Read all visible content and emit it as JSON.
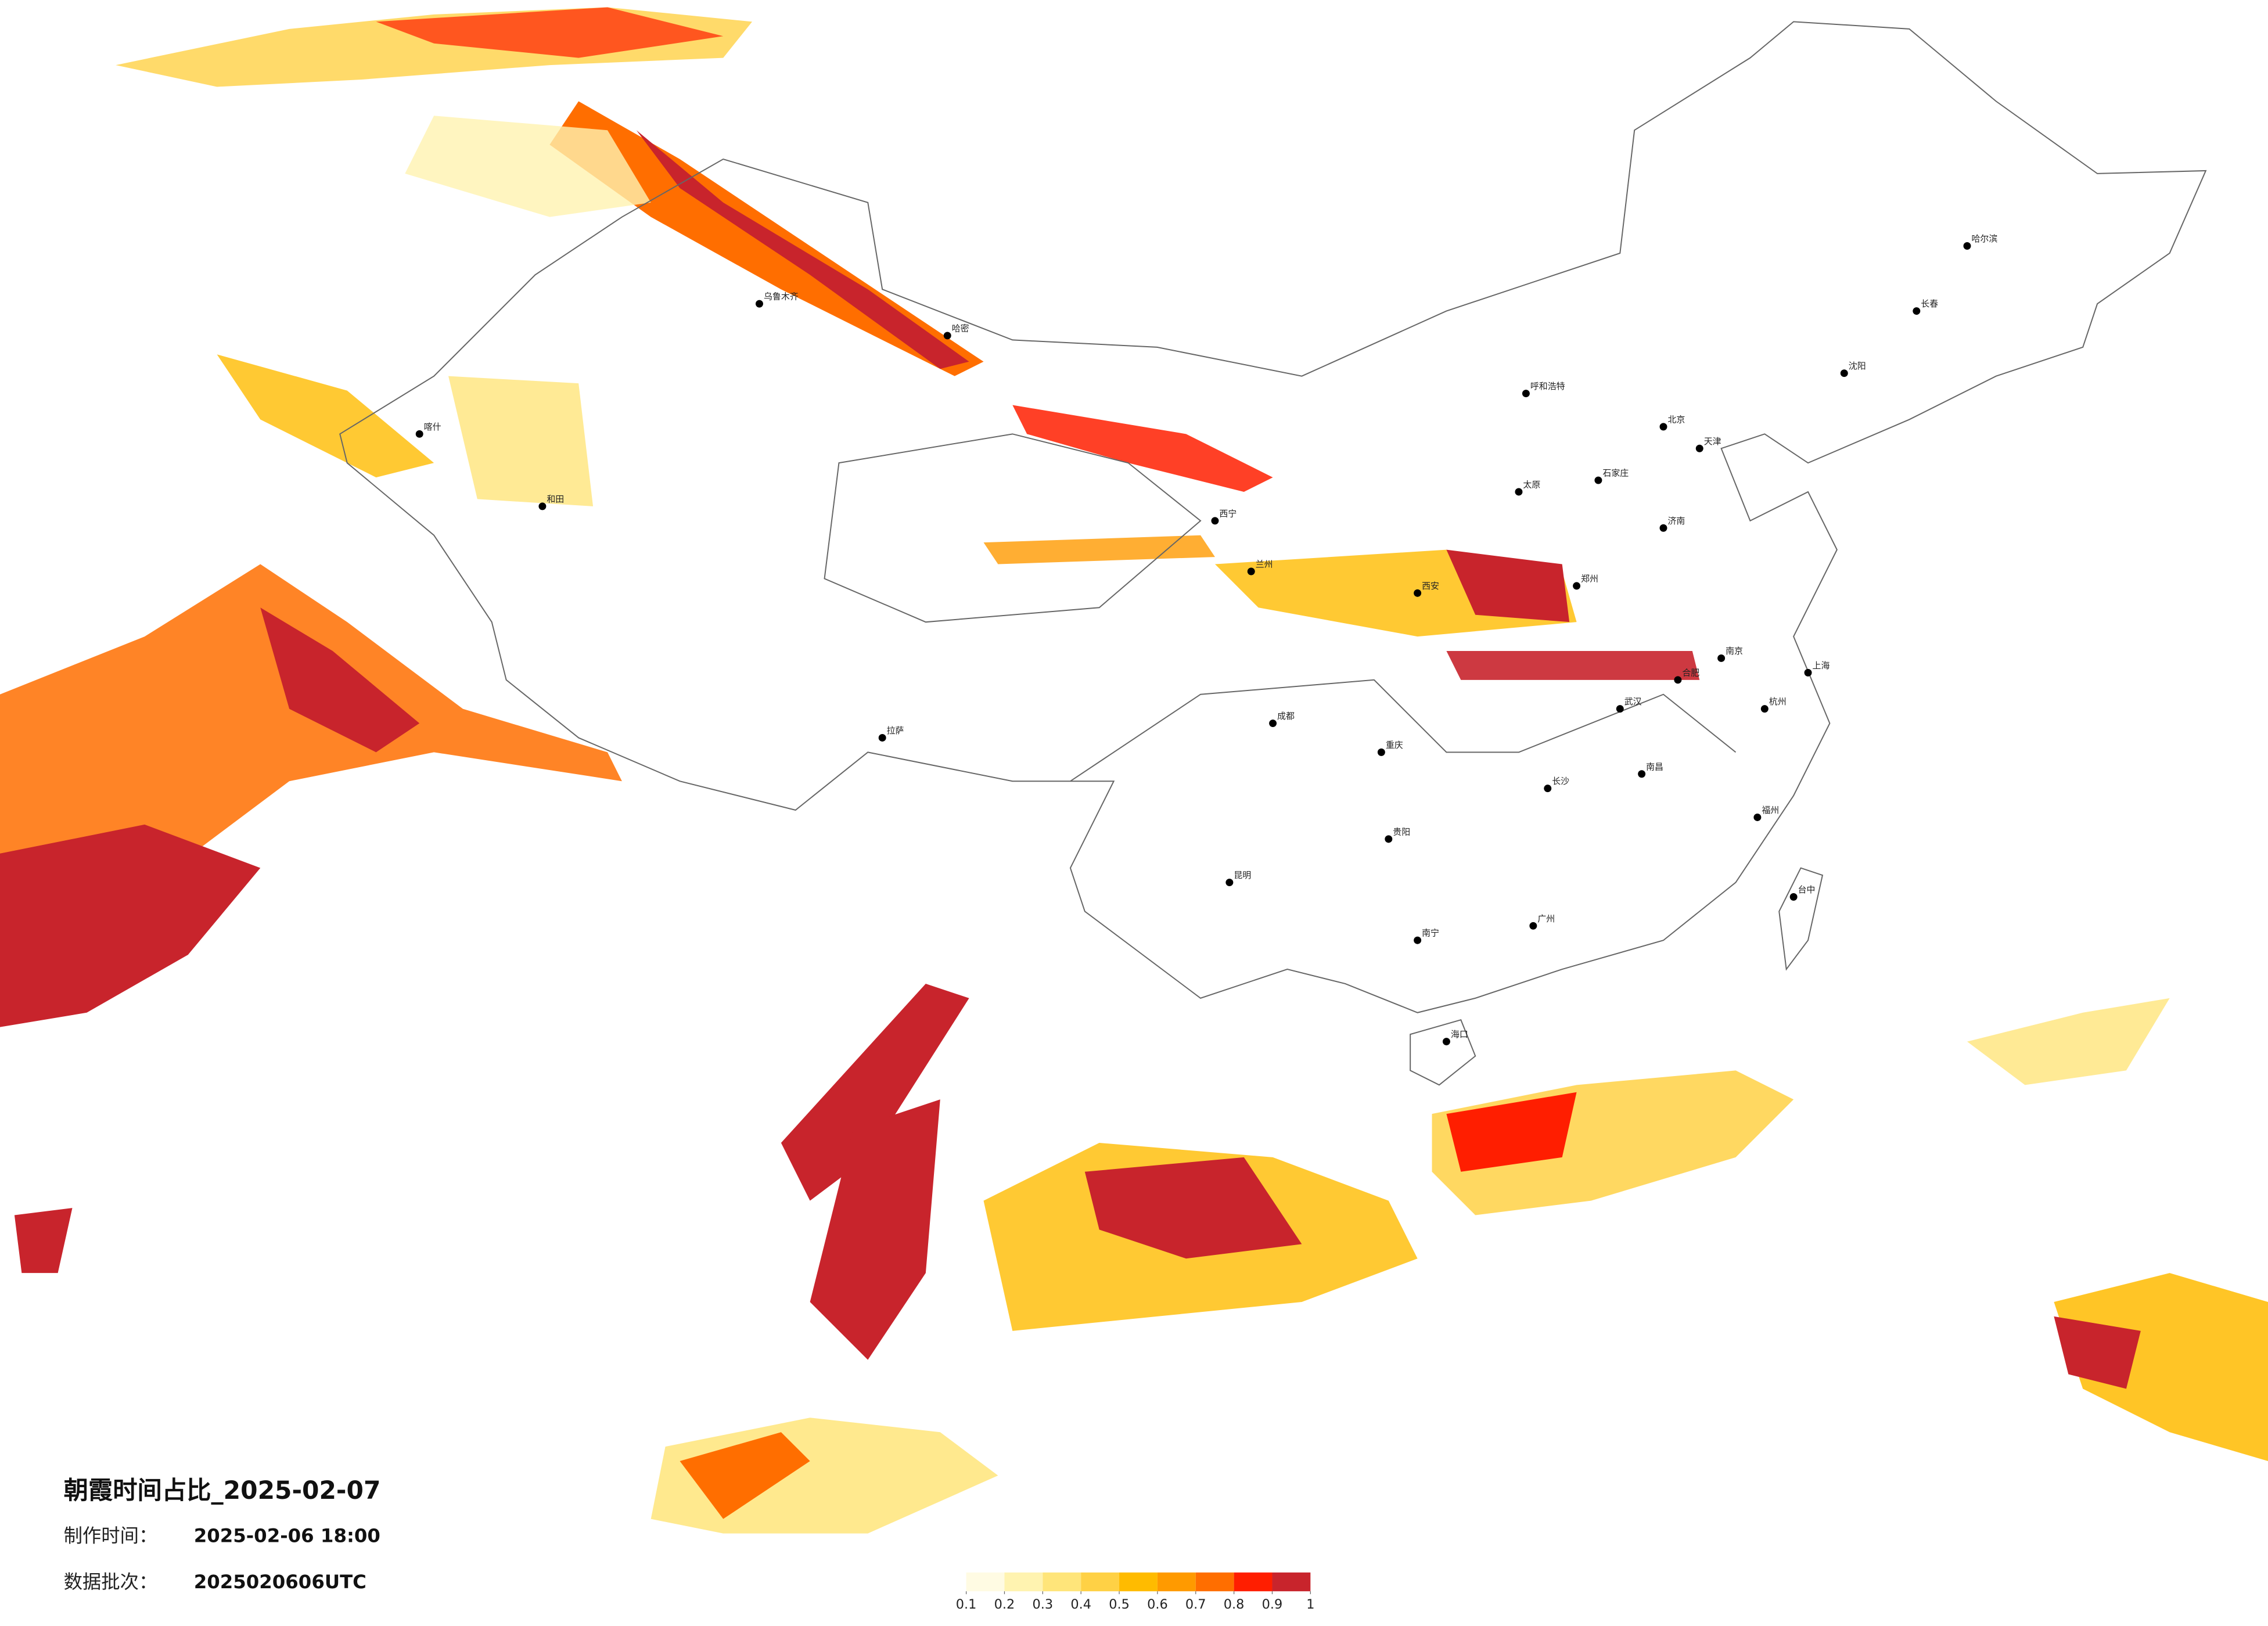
{
  "header": {
    "title": "朝霞时间占比_2025-02-07"
  },
  "info": {
    "production_label": "制作时间：",
    "production_time": "2025-02-06 18:00",
    "batch_label": "数据批次：",
    "batch": "2025020606UTC"
  },
  "legend": {
    "colors": [
      "#fffbe3",
      "#fff3b0",
      "#ffe57a",
      "#ffd145",
      "#ffbb00",
      "#ff9a00",
      "#ff6e00",
      "#ff1e00",
      "#c8242c"
    ],
    "ticks": [
      0.1,
      0.2,
      0.3,
      0.4,
      0.5,
      0.6,
      0.7,
      0.8,
      0.9,
      1
    ]
  },
  "cities": [
    "乌鲁木齐",
    "哈密",
    "喀什",
    "和田",
    "拉萨",
    "西宁",
    "兰州",
    "呼和浩特",
    "北京",
    "天津",
    "石家庄",
    "太原",
    "郑州",
    "西安",
    "成都",
    "重庆",
    "贵阳",
    "昆明",
    "南宁",
    "广州",
    "长沙",
    "武汉",
    "南昌",
    "福州",
    "杭州",
    "上海",
    "南京",
    "合肥",
    "济南",
    "沈阳",
    "长春",
    "哈尔滨",
    "海口",
    "台中"
  ]
}
